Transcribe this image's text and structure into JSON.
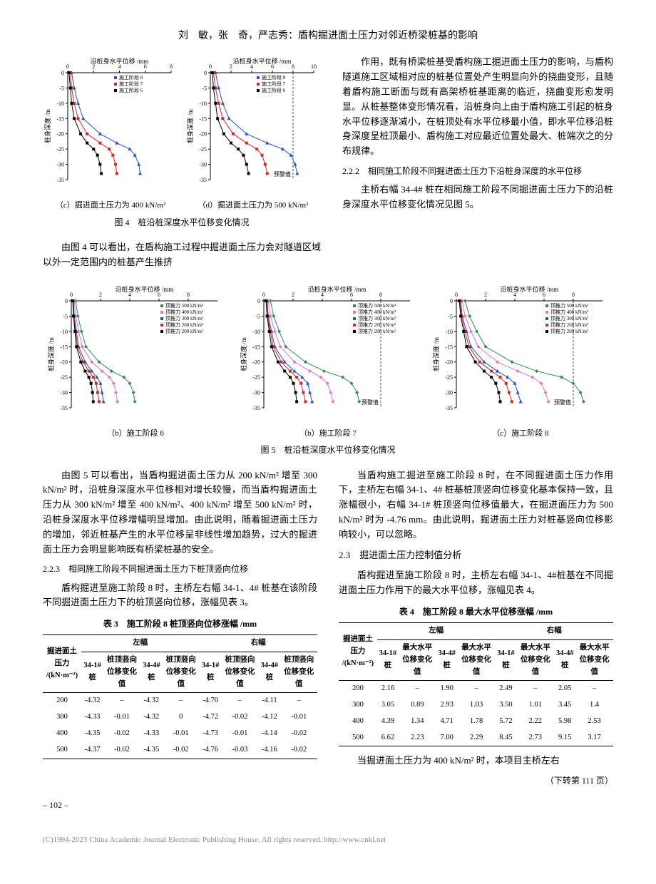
{
  "header": "刘　敏，张　奇，严志秀：盾构掘进面土压力对邻近桥梁桩基的影响",
  "fig4": {
    "charts": [
      {
        "xlabel": "沿桩身水平位移 /mm",
        "ylabel": "桩身深度 /m",
        "xlim": [
          0,
          8
        ],
        "xticks": [
          0,
          2,
          4,
          6,
          8
        ],
        "ylim": [
          -35,
          0
        ],
        "yticks": [
          0,
          -5,
          -10,
          -15,
          -20,
          -25,
          -30,
          -35
        ],
        "legend": [
          "施工阶段 8",
          "施工阶段 7",
          "施工阶段 6"
        ],
        "legend_colors": [
          "#2a52be",
          "#d62728",
          "#000000"
        ],
        "series": [
          {
            "color": "#2a52be",
            "marker": "triangle",
            "data": [
              [
                0.3,
                0
              ],
              [
                0.5,
                -5
              ],
              [
                0.8,
                -10
              ],
              [
                1.2,
                -15
              ],
              [
                2.5,
                -20
              ],
              [
                3.8,
                -23
              ],
              [
                4.8,
                -25
              ],
              [
                5.2,
                -27
              ],
              [
                5.5,
                -30
              ],
              [
                5.6,
                -33
              ]
            ]
          },
          {
            "color": "#d62728",
            "marker": "square",
            "data": [
              [
                0.2,
                0
              ],
              [
                0.3,
                -5
              ],
              [
                0.5,
                -10
              ],
              [
                0.8,
                -15
              ],
              [
                1.5,
                -20
              ],
              [
                2.5,
                -23
              ],
              [
                3.2,
                -25
              ],
              [
                3.5,
                -27
              ],
              [
                3.7,
                -30
              ],
              [
                3.8,
                -33
              ]
            ]
          },
          {
            "color": "#000000",
            "marker": "square",
            "data": [
              [
                0.1,
                0
              ],
              [
                0.2,
                -5
              ],
              [
                0.3,
                -10
              ],
              [
                0.5,
                -15
              ],
              [
                1.0,
                -20
              ],
              [
                1.5,
                -23
              ],
              [
                2.0,
                -25
              ],
              [
                2.3,
                -27
              ],
              [
                2.5,
                -30
              ],
              [
                2.6,
                -33
              ]
            ]
          }
        ],
        "warn_line": null,
        "subcap": "（c）掘进面土压力为 400 kN/m²"
      },
      {
        "xlabel": "沿桩身水平位移 /mm",
        "ylabel": "桩身深度 /m",
        "xlim": [
          0,
          10
        ],
        "xticks": [
          0,
          2,
          4,
          6,
          8,
          10
        ],
        "ylim": [
          -35,
          0
        ],
        "yticks": [
          0,
          -5,
          -10,
          -15,
          -20,
          -25,
          -30,
          -35
        ],
        "legend": [
          "施工阶段 8",
          "施工阶段 7",
          "施工阶段 6"
        ],
        "legend_colors": [
          "#2a52be",
          "#d62728",
          "#000000"
        ],
        "series": [
          {
            "color": "#2a52be",
            "marker": "triangle",
            "data": [
              [
                0.5,
                0
              ],
              [
                0.8,
                -5
              ],
              [
                1.2,
                -10
              ],
              [
                1.8,
                -15
              ],
              [
                3.5,
                -20
              ],
              [
                5.5,
                -23
              ],
              [
                7.0,
                -25
              ],
              [
                7.8,
                -27
              ],
              [
                8.2,
                -30
              ],
              [
                8.4,
                -33
              ]
            ]
          },
          {
            "color": "#d62728",
            "marker": "square",
            "data": [
              [
                0.3,
                0
              ],
              [
                0.5,
                -5
              ],
              [
                0.8,
                -10
              ],
              [
                1.2,
                -15
              ],
              [
                2.2,
                -20
              ],
              [
                3.5,
                -23
              ],
              [
                4.5,
                -25
              ],
              [
                5.0,
                -27
              ],
              [
                5.3,
                -30
              ],
              [
                5.5,
                -33
              ]
            ]
          },
          {
            "color": "#000000",
            "marker": "square",
            "data": [
              [
                0.2,
                0
              ],
              [
                0.3,
                -5
              ],
              [
                0.5,
                -10
              ],
              [
                0.7,
                -15
              ],
              [
                1.3,
                -20
              ],
              [
                2.0,
                -23
              ],
              [
                2.7,
                -25
              ],
              [
                3.2,
                -27
              ],
              [
                3.5,
                -30
              ],
              [
                3.7,
                -33
              ]
            ]
          }
        ],
        "warn_line": 8,
        "warn_label": "预警值",
        "subcap": "（d）掘进面土压力为 500 kN/m²"
      }
    ],
    "caption": "图 4　桩沿桩深度水平位移变化情况"
  },
  "para1": "由图 4 可以看出，在盾构施工过程中掘进面土压力会对隧道区域以外一定范围内的桩基产生推挤",
  "para2": "作用，既有桥梁桩基受盾构施工掘进面土压力的影响，与盾构隧道施工区域相对应的桩基位置处产生明显向外的挠曲变形，且随着盾构施工断面与既有高架桥桩基距离的临近，挠曲变形愈发明显。从桩基整体变形情况看，沿桩身向上由于盾构施工引起的桩身水平位移逐渐减小，在桩顶处有水平位移最小值，即水平位移沿桩身深度呈桩顶最小、盾构施工对应最近位置处最大、桩端次之的分布规律。",
  "sub222": "2.2.2　相同施工阶段不同掘进面土压力下沿桩身深度的水平位移",
  "para3": "主桥右幅 34-4# 桩在相同施工阶段不同掘进面土压力下的沿桩身深度水平位移变化情况见图 5。",
  "fig5": {
    "charts": [
      {
        "subcap": "（b）施工阶段 6",
        "warn_line": null
      },
      {
        "subcap": "（b）施工阶段 7",
        "warn_line": 8
      },
      {
        "subcap": "（c）施工阶段 8",
        "warn_line": 8
      }
    ],
    "xlabel": "沿桩身水平位移 /mm",
    "ylabel": "桩身深度 /m",
    "xlim": [
      0,
      10
    ],
    "xticks": [
      0,
      2,
      4,
      6,
      8
    ],
    "ylim": [
      -35,
      0
    ],
    "yticks": [
      0,
      -5,
      -10,
      -15,
      -20,
      -25,
      -30,
      -35
    ],
    "legend": [
      "顶推力 500 kN/m²",
      "顶推力 400 kN/m²",
      "顶推力 300 kN/m²",
      "顶推力 260 kN/m²",
      "顶推力 200 kN/m²"
    ],
    "legend_colors": [
      "#2e8b57",
      "#e377c2",
      "#2a52be",
      "#d62728",
      "#000000"
    ],
    "series_template": [
      {
        "color": "#2e8b57",
        "marker": "diamond",
        "base": [
          [
            0.6,
            0
          ],
          [
            0.9,
            -5
          ],
          [
            1.4,
            -10
          ],
          [
            2.0,
            -15
          ],
          [
            3.8,
            -20
          ],
          [
            5.5,
            -23
          ],
          [
            7.2,
            -25
          ],
          [
            8.0,
            -27
          ],
          [
            8.5,
            -30
          ],
          [
            8.7,
            -33
          ]
        ]
      },
      {
        "color": "#e377c2",
        "marker": "diamond",
        "base": [
          [
            0.4,
            0
          ],
          [
            0.6,
            -5
          ],
          [
            1.0,
            -10
          ],
          [
            1.5,
            -15
          ],
          [
            2.8,
            -20
          ],
          [
            4.2,
            -23
          ],
          [
            5.2,
            -25
          ],
          [
            5.8,
            -27
          ],
          [
            6.1,
            -30
          ],
          [
            6.3,
            -33
          ]
        ]
      },
      {
        "color": "#2a52be",
        "marker": "triangle",
        "base": [
          [
            0.3,
            0
          ],
          [
            0.4,
            -5
          ],
          [
            0.7,
            -10
          ],
          [
            1.0,
            -15
          ],
          [
            1.9,
            -20
          ],
          [
            2.8,
            -23
          ],
          [
            3.5,
            -25
          ],
          [
            4.0,
            -27
          ],
          [
            4.2,
            -30
          ],
          [
            4.4,
            -33
          ]
        ]
      },
      {
        "color": "#d62728",
        "marker": "square",
        "base": [
          [
            0.25,
            0
          ],
          [
            0.35,
            -5
          ],
          [
            0.6,
            -10
          ],
          [
            0.85,
            -15
          ],
          [
            1.6,
            -20
          ],
          [
            2.4,
            -23
          ],
          [
            3.0,
            -25
          ],
          [
            3.4,
            -27
          ],
          [
            3.6,
            -30
          ],
          [
            3.8,
            -33
          ]
        ]
      },
      {
        "color": "#000000",
        "marker": "square",
        "base": [
          [
            0.2,
            0
          ],
          [
            0.3,
            -5
          ],
          [
            0.5,
            -10
          ],
          [
            0.7,
            -15
          ],
          [
            1.3,
            -20
          ],
          [
            1.9,
            -23
          ],
          [
            2.4,
            -25
          ],
          [
            2.7,
            -27
          ],
          [
            2.9,
            -30
          ],
          [
            3.0,
            -33
          ]
        ]
      }
    ],
    "warn_label": "预警值",
    "caption": "图 5　桩沿桩深度水平位移变化情况"
  },
  "para4": "由图 5 可以看出，当盾构掘进面土压力从 200 kN/m² 增至 300 kN/m² 时，沿桩身深度水平位移相对增长较慢，而当盾构掘进面土压力从 300 kN/m² 增至 400 kN/m²、400 kN/m² 增至 500 kN/m² 时，沿桩身深度水平位移增幅明显增加。由此说明，随着掘进面土压力的增加，邻近桩基产生的水平位移呈非线性增加趋势，过大的掘进面土压力会明显影响既有桥梁桩基的安全。",
  "sub223": "2.2.3　相同施工阶段不同掘进面土压力下桩顶竖向位移",
  "para5": "盾构掘进至施工阶段 8 时，主桥左右幅 34-1、4# 桩基在该阶段不同掘进面土压力下的桩顶竖向位移，涨幅见表 3。",
  "para6": "当盾构施工掘进至施工阶段 8 时，在不同掘进面土压力作用下，主桥左右幅 34-1、4# 桩基桩顶竖向位移变化基本保持一致，且涨幅很小，右幅 34-1# 桩顶竖向位移值最大，在掘进面压力为 500 kN/m² 时为 -4.76 mm。由此说明，掘进面土压力对桩基竖向位移影响较小，可以忽略。",
  "sect23": "2.3　掘进面土压力控制值分析",
  "para7": "盾构掘进至施工阶段 8 时，主桥左右幅 34-1、4#桩基在不同掘进面土压力作用下的最大水平位移，涨幅见表 4。",
  "table3": {
    "caption": "表 3　施工阶段 8 桩顶竖向位移涨幅 /mm",
    "header1": [
      "掘进面土压力 /(kN·m⁻²)",
      "左幅",
      "",
      "",
      "",
      "右幅",
      "",
      "",
      ""
    ],
    "header2": [
      "",
      "34-1# 桩",
      "桩顶竖向位移变化值",
      "34-4# 桩",
      "桩顶竖向位移变化值",
      "34-1# 桩",
      "桩顶竖向位移变化值",
      "34-4# 桩",
      "桩顶竖向位移变化值"
    ],
    "rows": [
      [
        "200",
        "-4.32",
        "–",
        "-4.32",
        "–",
        "-4.70",
        "–",
        "-4.11",
        "–"
      ],
      [
        "300",
        "-4.33",
        "-0.01",
        "-4.32",
        "0",
        "-4.72",
        "-0.02",
        "-4.12",
        "-0.01"
      ],
      [
        "400",
        "-4.35",
        "-0.02",
        "-4.33",
        "-0.01",
        "-4.73",
        "-0.01",
        "-4.14",
        "-0.02"
      ],
      [
        "500",
        "-4.37",
        "-0.02",
        "-4.35",
        "-0.02",
        "-4.76",
        "-0.03",
        "-4.16",
        "-0.02"
      ]
    ]
  },
  "table4": {
    "caption": "表 4　施工阶段 8 最大水平位移涨幅 /mm",
    "header1": [
      "掘进面土压力 /(kN·m⁻²)",
      "左幅",
      "",
      "",
      "",
      "右幅",
      "",
      "",
      ""
    ],
    "header2": [
      "",
      "34-1# 桩",
      "最大水平位移变化值",
      "34-4# 桩",
      "最大水平位移变化值",
      "34-1# 桩",
      "最大水平位移变化值",
      "34-4# 桩",
      "最大水平位移变化值"
    ],
    "rows": [
      [
        "200",
        "2.16",
        "–",
        "1.90",
        "–",
        "2.49",
        "–",
        "2.05",
        "–"
      ],
      [
        "300",
        "3.05",
        "0.89",
        "2.93",
        "1.03",
        "3.50",
        "1.01",
        "3.45",
        "1.4"
      ],
      [
        "400",
        "4.39",
        "1.34",
        "4.71",
        "1.78",
        "5.72",
        "2.22",
        "5.98",
        "2.53"
      ],
      [
        "500",
        "6.62",
        "2.23",
        "7.00",
        "2.29",
        "8.45",
        "2.73",
        "9.15",
        "3.17"
      ]
    ]
  },
  "para8": "当掘进面土压力为 400 kN/m² 时，本项目主桥左右",
  "cont": "（下转第 111 页）",
  "pgnum": "– 102 –",
  "footer": "(C)1994-2023 China Academic Journal Electronic Publishing House. All rights reserved.    http://www.cnki.net"
}
